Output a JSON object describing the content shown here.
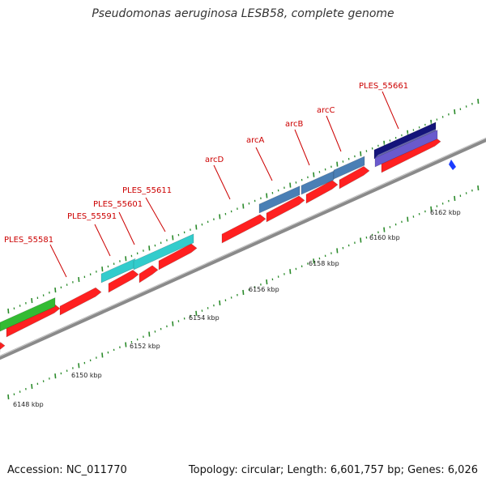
{
  "title": "Pseudomonas aeruginosa LESB58, complete genome",
  "footer": {
    "accession": "Accession: NC_011770",
    "topology": "Topology: circular; Length: 6,601,757 bp; Genes: 6,026"
  },
  "colors": {
    "backbone": "#8a8a8a",
    "tick": "#2a8a2a",
    "gene_label": "#cc0000",
    "forward_red": "#ff2020",
    "cyan": "#33cccc",
    "green": "#33bb33",
    "steel_blue": "#4a7fb5",
    "navy": "#14147a",
    "purple": "#6a5acd",
    "marker": "#1a3cff"
  },
  "scale_labels": [
    "6148 kbp",
    "6150 kbp",
    "6152 kbp",
    "6154 kbp",
    "6156 kbp",
    "6158 kbp",
    "6160 kbp",
    "6162 kbp"
  ],
  "gene_labels": [
    "PLES_55581",
    "PLES_55591",
    "PLES_55601",
    "PLES_55611",
    "arcD",
    "arcA",
    "arcB",
    "arcC",
    "PLES_55661"
  ]
}
